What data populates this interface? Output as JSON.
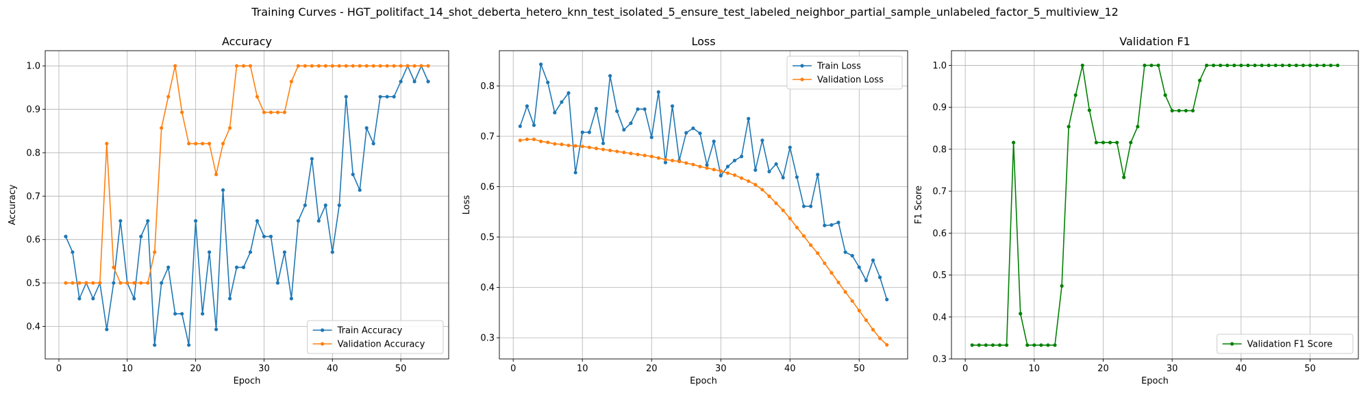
{
  "figure": {
    "suptitle": "Training Curves - HGT_politifact_14_shot_deberta_hetero_knn_test_isolated_5_ensure_test_labeled_neighbor_partial_sample_unlabeled_factor_5_multiview_12"
  },
  "chart_data": [
    {
      "type": "line",
      "title": "Accuracy",
      "xlabel": "Epoch",
      "ylabel": "Accuracy",
      "xlim": [
        -2,
        57
      ],
      "ylim": [
        0.325,
        1.035
      ],
      "xticks": [
        0,
        10,
        20,
        30,
        40,
        50
      ],
      "xtick_labels": [
        "0",
        "10",
        "20",
        "30",
        "40",
        "50"
      ],
      "yticks": [
        0.4,
        0.5,
        0.6,
        0.7,
        0.8,
        0.9,
        1.0
      ],
      "ytick_labels": [
        "0.4",
        "0.5",
        "0.6",
        "0.7",
        "0.8",
        "0.9",
        "1.0"
      ],
      "grid": true,
      "legend_position": "lower-right",
      "x": [
        1,
        2,
        3,
        4,
        5,
        6,
        7,
        8,
        9,
        10,
        11,
        12,
        13,
        14,
        15,
        16,
        17,
        18,
        19,
        20,
        21,
        22,
        23,
        24,
        25,
        26,
        27,
        28,
        29,
        30,
        31,
        32,
        33,
        34,
        35,
        36,
        37,
        38,
        39,
        40,
        41,
        42,
        43,
        44,
        45,
        46,
        47,
        48,
        49,
        50,
        51,
        52,
        53,
        54
      ],
      "series": [
        {
          "name": "Train Accuracy",
          "color": "#1f77b4",
          "values": [
            0.607,
            0.571,
            0.464,
            0.5,
            0.464,
            0.5,
            0.393,
            0.5,
            0.643,
            0.5,
            0.464,
            0.607,
            0.643,
            0.357,
            0.5,
            0.536,
            0.429,
            0.429,
            0.357,
            0.643,
            0.429,
            0.571,
            0.393,
            0.714,
            0.464,
            0.536,
            0.536,
            0.571,
            0.643,
            0.607,
            0.607,
            0.5,
            0.571,
            0.464,
            0.643,
            0.679,
            0.786,
            0.643,
            0.679,
            0.571,
            0.679,
            0.929,
            0.75,
            0.714,
            0.857,
            0.821,
            0.929,
            0.929,
            0.929,
            0.964,
            1.0,
            0.964,
            1.0,
            0.964
          ]
        },
        {
          "name": "Validation Accuracy",
          "color": "#ff7f0e",
          "values": [
            0.5,
            0.5,
            0.5,
            0.5,
            0.5,
            0.5,
            0.821,
            0.536,
            0.5,
            0.5,
            0.5,
            0.5,
            0.5,
            0.571,
            0.857,
            0.929,
            1.0,
            0.893,
            0.821,
            0.821,
            0.821,
            0.821,
            0.75,
            0.821,
            0.857,
            1.0,
            1.0,
            1.0,
            0.929,
            0.893,
            0.893,
            0.893,
            0.893,
            0.964,
            1.0,
            1.0,
            1.0,
            1.0,
            1.0,
            1.0,
            1.0,
            1.0,
            1.0,
            1.0,
            1.0,
            1.0,
            1.0,
            1.0,
            1.0,
            1.0,
            1.0,
            1.0,
            1.0,
            1.0
          ]
        }
      ]
    },
    {
      "type": "line",
      "title": "Loss",
      "xlabel": "Epoch",
      "ylabel": "Loss",
      "xlim": [
        -2,
        57
      ],
      "ylim": [
        0.258,
        0.87
      ],
      "xticks": [
        0,
        10,
        20,
        30,
        40,
        50
      ],
      "xtick_labels": [
        "0",
        "10",
        "20",
        "30",
        "40",
        "50"
      ],
      "yticks": [
        0.3,
        0.4,
        0.5,
        0.6,
        0.7,
        0.8
      ],
      "ytick_labels": [
        "0.3",
        "0.4",
        "0.5",
        "0.6",
        "0.7",
        "0.8"
      ],
      "grid": true,
      "legend_position": "upper-right",
      "x": [
        1,
        2,
        3,
        4,
        5,
        6,
        7,
        8,
        9,
        10,
        11,
        12,
        13,
        14,
        15,
        16,
        17,
        18,
        19,
        20,
        21,
        22,
        23,
        24,
        25,
        26,
        27,
        28,
        29,
        30,
        31,
        32,
        33,
        34,
        35,
        36,
        37,
        38,
        39,
        40,
        41,
        42,
        43,
        44,
        45,
        46,
        47,
        48,
        49,
        50,
        51,
        52,
        53,
        54
      ],
      "series": [
        {
          "name": "Train Loss",
          "color": "#1f77b4",
          "values": [
            0.72,
            0.76,
            0.722,
            0.843,
            0.807,
            0.747,
            0.768,
            0.786,
            0.628,
            0.708,
            0.708,
            0.755,
            0.686,
            0.82,
            0.75,
            0.713,
            0.726,
            0.754,
            0.754,
            0.698,
            0.788,
            0.648,
            0.76,
            0.652,
            0.707,
            0.716,
            0.706,
            0.643,
            0.69,
            0.622,
            0.64,
            0.652,
            0.66,
            0.735,
            0.633,
            0.692,
            0.63,
            0.645,
            0.618,
            0.678,
            0.619,
            0.561,
            0.561,
            0.624,
            0.523,
            0.524,
            0.529,
            0.47,
            0.463,
            0.44,
            0.414,
            0.454,
            0.42,
            0.376
          ]
        },
        {
          "name": "Validation Loss",
          "color": "#ff7f0e",
          "values": [
            0.692,
            0.694,
            0.694,
            0.69,
            0.688,
            0.685,
            0.684,
            0.682,
            0.681,
            0.68,
            0.678,
            0.676,
            0.674,
            0.672,
            0.67,
            0.668,
            0.666,
            0.664,
            0.662,
            0.66,
            0.657,
            0.654,
            0.652,
            0.65,
            0.647,
            0.644,
            0.64,
            0.637,
            0.634,
            0.631,
            0.627,
            0.623,
            0.617,
            0.611,
            0.604,
            0.594,
            0.581,
            0.567,
            0.553,
            0.537,
            0.519,
            0.502,
            0.484,
            0.468,
            0.448,
            0.429,
            0.41,
            0.391,
            0.373,
            0.354,
            0.335,
            0.316,
            0.299,
            0.286
          ]
        }
      ]
    },
    {
      "type": "line",
      "title": "Validation F1",
      "xlabel": "Epoch",
      "ylabel": "F1 Score",
      "xlim": [
        -2,
        57
      ],
      "ylim": [
        0.3,
        1.035
      ],
      "xticks": [
        0,
        10,
        20,
        30,
        40,
        50
      ],
      "xtick_labels": [
        "0",
        "10",
        "20",
        "30",
        "40",
        "50"
      ],
      "yticks": [
        0.3,
        0.4,
        0.5,
        0.6,
        0.7,
        0.8,
        0.9,
        1.0
      ],
      "ytick_labels": [
        "0.3",
        "0.4",
        "0.5",
        "0.6",
        "0.7",
        "0.8",
        "0.9",
        "1.0"
      ],
      "grid": true,
      "legend_position": "lower-right",
      "x": [
        1,
        2,
        3,
        4,
        5,
        6,
        7,
        8,
        9,
        10,
        11,
        12,
        13,
        14,
        15,
        16,
        17,
        18,
        19,
        20,
        21,
        22,
        23,
        24,
        25,
        26,
        27,
        28,
        29,
        30,
        31,
        32,
        33,
        34,
        35,
        36,
        37,
        38,
        39,
        40,
        41,
        42,
        43,
        44,
        45,
        46,
        47,
        48,
        49,
        50,
        51,
        52,
        53,
        54
      ],
      "series": [
        {
          "name": "Validation F1 Score",
          "color": "#008000",
          "values": [
            0.333,
            0.333,
            0.333,
            0.333,
            0.333,
            0.333,
            0.816,
            0.408,
            0.333,
            0.333,
            0.333,
            0.333,
            0.333,
            0.474,
            0.854,
            0.929,
            1.0,
            0.893,
            0.816,
            0.816,
            0.816,
            0.816,
            0.733,
            0.816,
            0.854,
            1.0,
            1.0,
            1.0,
            0.929,
            0.892,
            0.892,
            0.892,
            0.892,
            0.964,
            1.0,
            1.0,
            1.0,
            1.0,
            1.0,
            1.0,
            1.0,
            1.0,
            1.0,
            1.0,
            1.0,
            1.0,
            1.0,
            1.0,
            1.0,
            1.0,
            1.0,
            1.0,
            1.0,
            1.0
          ]
        }
      ]
    }
  ]
}
